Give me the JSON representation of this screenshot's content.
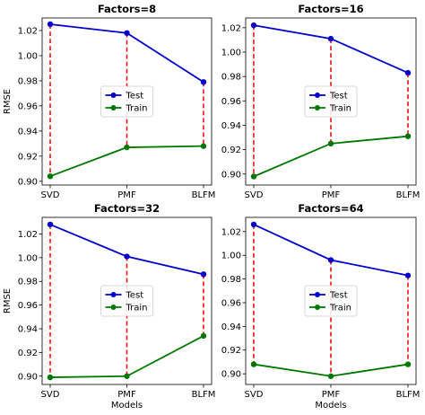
{
  "chart_data": [
    {
      "type": "line",
      "title": "Factors=8",
      "xlabel": "",
      "ylabel": "RMSE",
      "categories": [
        "SVD",
        "PMF",
        "BLFM"
      ],
      "ylim": [
        0.897,
        1.03
      ],
      "yticks": [
        "0.90",
        "0.92",
        "0.94",
        "0.96",
        "0.98",
        "1.00",
        "1.02"
      ],
      "series": [
        {
          "name": "Test",
          "color": "#0000cc",
          "values": [
            1.025,
            1.018,
            0.979
          ]
        },
        {
          "name": "Train",
          "color": "#007700",
          "values": [
            0.904,
            0.927,
            0.928
          ]
        }
      ],
      "legend": "center"
    },
    {
      "type": "line",
      "title": "Factors=16",
      "xlabel": "",
      "ylabel": "",
      "categories": [
        "SVD",
        "PMF",
        "BLFM"
      ],
      "ylim": [
        0.891,
        1.028
      ],
      "yticks": [
        "0.90",
        "0.92",
        "0.94",
        "0.96",
        "0.98",
        "1.00",
        "1.02"
      ],
      "series": [
        {
          "name": "Test",
          "color": "#0000cc",
          "values": [
            1.022,
            1.011,
            0.983
          ]
        },
        {
          "name": "Train",
          "color": "#007700",
          "values": [
            0.898,
            0.925,
            0.931
          ]
        }
      ],
      "legend": "center"
    },
    {
      "type": "line",
      "title": "Factors=32",
      "xlabel": "Models",
      "ylabel": "RMSE",
      "categories": [
        "SVD",
        "PMF",
        "BLFM"
      ],
      "ylim": [
        0.893,
        1.034
      ],
      "yticks": [
        "0.90",
        "0.92",
        "0.94",
        "0.96",
        "0.98",
        "1.00",
        "1.02"
      ],
      "series": [
        {
          "name": "Test",
          "color": "#0000cc",
          "values": [
            1.028,
            1.001,
            0.986
          ]
        },
        {
          "name": "Train",
          "color": "#007700",
          "values": [
            0.899,
            0.9,
            0.934
          ]
        }
      ],
      "legend": "center"
    },
    {
      "type": "line",
      "title": "Factors=64",
      "xlabel": "Models",
      "ylabel": "",
      "categories": [
        "SVD",
        "PMF",
        "BLFM"
      ],
      "ylim": [
        0.891,
        1.032
      ],
      "yticks": [
        "0.90",
        "0.92",
        "0.94",
        "0.96",
        "0.98",
        "1.00",
        "1.02"
      ],
      "series": [
        {
          "name": "Test",
          "color": "#0000cc",
          "values": [
            1.026,
            0.996,
            0.983
          ]
        },
        {
          "name": "Train",
          "color": "#007700",
          "values": [
            0.908,
            0.898,
            0.908
          ]
        }
      ],
      "legend": "center"
    }
  ]
}
